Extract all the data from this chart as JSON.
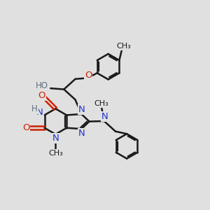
{
  "bg_color": "#e0e0e0",
  "bond_color": "#1a1a1a",
  "bond_width": 1.8,
  "N_color": "#2233cc",
  "O_color": "#cc2200",
  "H_color": "#607080",
  "C_color": "#1a1a1a",
  "font_size": 8.5,
  "fig_size": [
    3.0,
    3.0
  ],
  "dpi": 100,
  "xlim": [
    0,
    10
  ],
  "ylim": [
    0,
    10
  ]
}
